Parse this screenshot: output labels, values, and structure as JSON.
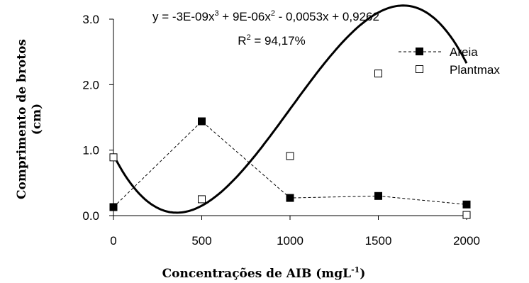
{
  "chart_data": {
    "type": "scatter",
    "xlabel": "Concentrações de AIB (mgL",
    "xlabel_sup": "-1",
    "xlabel_close": ")",
    "ylabel_line1": "Comprimento de brotos",
    "ylabel_line2": "(cm)",
    "xlim": [
      0,
      2000
    ],
    "ylim": [
      0,
      3.0
    ],
    "x_ticks": [
      0,
      500,
      1000,
      1500,
      2000
    ],
    "x_tick_labels": [
      "0",
      "500",
      "1000",
      "1500",
      "2000"
    ],
    "y_ticks": [
      0.0,
      1.0,
      2.0,
      3.0
    ],
    "y_tick_labels": [
      "0.0",
      "1.0",
      "2.0",
      "3.0"
    ],
    "grid": false,
    "legend_position": "top-right",
    "series": [
      {
        "name": "Areia",
        "marker": "filled-square",
        "line": "dashed",
        "x": [
          0,
          500,
          1000,
          1500,
          2000
        ],
        "y": [
          0.13,
          1.44,
          0.27,
          0.3,
          0.17
        ]
      },
      {
        "name": "Plantmax",
        "marker": "open-square",
        "line": "none",
        "x": [
          0,
          500,
          1000,
          1500,
          2000
        ],
        "y": [
          0.89,
          0.25,
          0.91,
          2.17,
          0.01
        ]
      }
    ],
    "trendline": {
      "series": "Plantmax",
      "coefficients": [
        -3e-09,
        9e-06,
        -0.0053,
        0.9262
      ],
      "equation": {
        "p1": "y = -3E-09x",
        "e1": "3",
        "p2": " + 9E-06x",
        "e2": "2",
        "p3": " - 0,0053x + 0,9262"
      },
      "r2": {
        "p1": "R",
        "e1": "2",
        "p2": " = 94,17%"
      }
    }
  },
  "colors": {
    "axis": "#000000",
    "marker": "#000000",
    "background": "#ffffff"
  }
}
